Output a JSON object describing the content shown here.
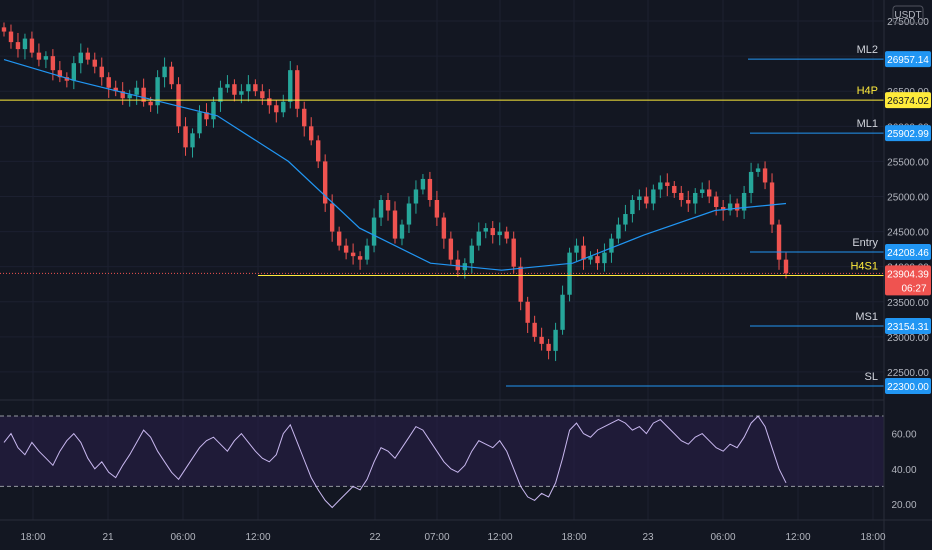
{
  "chart_data": {
    "type": "candlestick",
    "currency_label": "USDT",
    "price_axis": {
      "ticks": [
        22500,
        23000,
        23500,
        24000,
        24500,
        25000,
        25500,
        26000,
        26500,
        27000,
        27500
      ],
      "tick_labels": [
        "22500.00",
        "23000.00",
        "23500.00",
        "24000.00",
        "24500.00",
        "25000.00",
        "25500.00",
        "26000.00",
        "26500.00",
        "27000.00",
        "27500.00"
      ],
      "range": [
        22100,
        27800
      ]
    },
    "time_axis": {
      "labels": [
        "18:00",
        "21",
        "06:00",
        "12:00",
        "22",
        "07:00",
        "12:00",
        "18:00",
        "23",
        "06:00",
        "12:00",
        "18:00"
      ]
    },
    "levels": [
      {
        "name": "ML2",
        "value": 26957.14,
        "label": "26957.14",
        "color": "#2196f3"
      },
      {
        "name": "H4P",
        "value": 26374.02,
        "label": "26374.02",
        "color": "#ffeb3b"
      },
      {
        "name": "ML1",
        "value": 25902.99,
        "label": "25902.99",
        "color": "#2196f3"
      },
      {
        "name": "Entry",
        "value": 24208.46,
        "label": "24208.46",
        "color": "#2196f3"
      },
      {
        "name": "H4S1",
        "value": 23874.96,
        "label": "23874.96",
        "color": "#ffeb3b"
      },
      {
        "name": "MS1",
        "value": 23154.31,
        "label": "23154.31",
        "color": "#2196f3"
      },
      {
        "name": "SL",
        "value": 22300.0,
        "label": "22300.00",
        "color": "#2196f3"
      }
    ],
    "last_price": {
      "value": 23904.39,
      "label": "23904.39",
      "countdown": "06:27",
      "color": "#ef5350"
    },
    "series_close": [
      27350,
      27200,
      27100,
      27250,
      27050,
      26950,
      27000,
      26800,
      26700,
      26650,
      26900,
      27050,
      26950,
      26850,
      26700,
      26550,
      26500,
      26400,
      26450,
      26550,
      26350,
      26300,
      26700,
      26850,
      26600,
      26000,
      25700,
      25900,
      26200,
      26100,
      26350,
      26550,
      26600,
      26450,
      26500,
      26600,
      26500,
      26400,
      26300,
      26200,
      26350,
      26800,
      26250,
      26000,
      25800,
      25500,
      24900,
      24500,
      24300,
      24200,
      24150,
      24100,
      24300,
      24700,
      24950,
      24800,
      24400,
      24600,
      24900,
      25100,
      25250,
      24950,
      24700,
      24400,
      24100,
      23950,
      24050,
      24300,
      24500,
      24550,
      24450,
      24500,
      24400,
      24000,
      23500,
      23200,
      23000,
      22900,
      22800,
      23100,
      23600,
      24200,
      24300,
      24100,
      24150,
      24050,
      24200,
      24400,
      24600,
      24750,
      24950,
      25000,
      24900,
      25100,
      25200,
      25150,
      25050,
      24950,
      24900,
      25050,
      25100,
      25000,
      24850,
      24800,
      24900,
      24800,
      25050,
      25350,
      25400,
      25200,
      24600,
      24100,
      23904
    ],
    "ma_points": [
      26950,
      26650,
      26400,
      26150,
      25500,
      24550,
      24050,
      23950,
      24050,
      24450,
      24800,
      24900
    ],
    "rsi": {
      "ticks": [
        20,
        40,
        60
      ],
      "tick_labels": [
        "20.00",
        "40.00",
        "60.00"
      ],
      "upper": 70,
      "lower": 30,
      "range": [
        12,
        78
      ],
      "values": [
        55,
        60,
        52,
        48,
        55,
        50,
        46,
        42,
        50,
        56,
        60,
        55,
        46,
        40,
        44,
        38,
        35,
        42,
        48,
        55,
        62,
        58,
        50,
        44,
        38,
        34,
        40,
        46,
        52,
        56,
        58,
        54,
        50,
        56,
        60,
        55,
        50,
        46,
        44,
        48,
        60,
        65,
        55,
        45,
        35,
        28,
        22,
        18,
        22,
        26,
        30,
        28,
        34,
        44,
        52,
        50,
        46,
        52,
        58,
        64,
        62,
        56,
        50,
        44,
        40,
        38,
        42,
        50,
        56,
        54,
        52,
        56,
        50,
        40,
        30,
        24,
        22,
        26,
        24,
        32,
        46,
        62,
        66,
        60,
        58,
        62,
        64,
        66,
        68,
        66,
        62,
        64,
        60,
        66,
        68,
        64,
        60,
        56,
        54,
        58,
        60,
        56,
        52,
        50,
        54,
        52,
        58,
        66,
        70,
        64,
        52,
        40,
        32
      ]
    }
  }
}
